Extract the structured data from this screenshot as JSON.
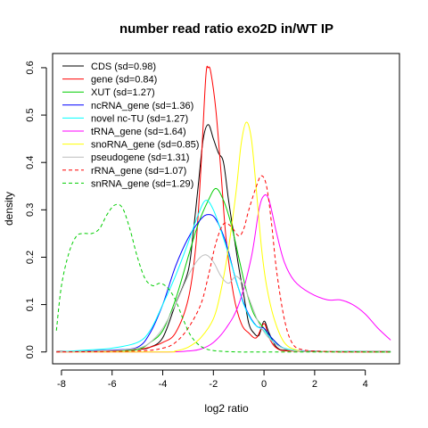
{
  "chart_data": {
    "type": "line",
    "title": "number read ratio exo2D in/WT IP",
    "xlabel": "log2 ratio",
    "ylabel": "density",
    "xlim": [
      -8.35,
      5.35
    ],
    "ylim": [
      -0.025,
      0.63
    ],
    "x_ticks": [
      -8,
      -6,
      -4,
      -2,
      0,
      2,
      4
    ],
    "x_tick_labels": [
      "-8",
      "-6",
      "-4",
      "-2",
      "0",
      "2",
      "4"
    ],
    "y_ticks": [
      0.0,
      0.1,
      0.2,
      0.3,
      0.4,
      0.5,
      0.6
    ],
    "y_tick_labels": [
      "0.0",
      "0.1",
      "0.2",
      "0.3",
      "0.4",
      "0.5",
      "0.6"
    ],
    "grid": false,
    "legend_position": "top-left",
    "series": [
      {
        "name": "CDS (sd=0.98)",
        "color": "#000000",
        "dash": "solid",
        "points": [
          [
            -8.2,
            0.001
          ],
          [
            -6,
            0.003
          ],
          [
            -5,
            0.005
          ],
          [
            -4.5,
            0.01
          ],
          [
            -4,
            0.03
          ],
          [
            -3.5,
            0.1
          ],
          [
            -3,
            0.17
          ],
          [
            -2.8,
            0.25
          ],
          [
            -2.6,
            0.35
          ],
          [
            -2.4,
            0.45
          ],
          [
            -2.2,
            0.48
          ],
          [
            -2,
            0.45
          ],
          [
            -1.8,
            0.42
          ],
          [
            -1.6,
            0.4
          ],
          [
            -1.4,
            0.32
          ],
          [
            -1.2,
            0.25
          ],
          [
            -1,
            0.18
          ],
          [
            -0.8,
            0.12
          ],
          [
            -0.6,
            0.06
          ],
          [
            -0.4,
            0.04
          ],
          [
            -0.2,
            0.035
          ],
          [
            0,
            0.065
          ],
          [
            0.2,
            0.04
          ],
          [
            0.5,
            0.01
          ],
          [
            1,
            0.003
          ],
          [
            3,
            0.001
          ],
          [
            5,
            0.001
          ]
        ]
      },
      {
        "name": "gene (sd=0.84)",
        "color": "#ff0000",
        "dash": "solid",
        "points": [
          [
            -8.2,
            0
          ],
          [
            -6,
            0.002
          ],
          [
            -5,
            0.005
          ],
          [
            -4.5,
            0.01
          ],
          [
            -4,
            0.02
          ],
          [
            -3.5,
            0.04
          ],
          [
            -3,
            0.11
          ],
          [
            -2.7,
            0.22
          ],
          [
            -2.5,
            0.38
          ],
          [
            -2.3,
            0.58
          ],
          [
            -2.2,
            0.6
          ],
          [
            -2.1,
            0.59
          ],
          [
            -1.9,
            0.51
          ],
          [
            -1.7,
            0.38
          ],
          [
            -1.5,
            0.24
          ],
          [
            -1.2,
            0.12
          ],
          [
            -0.9,
            0.06
          ],
          [
            -0.6,
            0.04
          ],
          [
            -0.3,
            0.03
          ],
          [
            0,
            0.06
          ],
          [
            0.2,
            0.03
          ],
          [
            0.5,
            0.008
          ],
          [
            1,
            0.002
          ],
          [
            3,
            0
          ],
          [
            5,
            0
          ]
        ]
      },
      {
        "name": "XUT (sd=1.27)",
        "color": "#00cd00",
        "dash": "solid",
        "points": [
          [
            -8.2,
            0
          ],
          [
            -6,
            0.003
          ],
          [
            -5,
            0.005
          ],
          [
            -4.5,
            0.02
          ],
          [
            -4,
            0.045
          ],
          [
            -3.5,
            0.11
          ],
          [
            -3,
            0.2
          ],
          [
            -2.6,
            0.27
          ],
          [
            -2.2,
            0.32
          ],
          [
            -1.9,
            0.345
          ],
          [
            -1.6,
            0.32
          ],
          [
            -1.3,
            0.27
          ],
          [
            -1,
            0.2
          ],
          [
            -0.7,
            0.13
          ],
          [
            -0.4,
            0.08
          ],
          [
            0,
            0.05
          ],
          [
            0.3,
            0.03
          ],
          [
            0.7,
            0.01
          ],
          [
            1.2,
            0.003
          ],
          [
            3,
            0.001
          ],
          [
            5,
            0
          ]
        ]
      },
      {
        "name": "ncRNA_gene (sd=1.36)",
        "color": "#0000ff",
        "dash": "solid",
        "points": [
          [
            -8.2,
            0
          ],
          [
            -7,
            0.002
          ],
          [
            -6,
            0.004
          ],
          [
            -5,
            0.01
          ],
          [
            -4.5,
            0.04
          ],
          [
            -4,
            0.1
          ],
          [
            -3.5,
            0.18
          ],
          [
            -3,
            0.24
          ],
          [
            -2.5,
            0.28
          ],
          [
            -2.2,
            0.29
          ],
          [
            -1.9,
            0.28
          ],
          [
            -1.5,
            0.23
          ],
          [
            -1.1,
            0.15
          ],
          [
            -0.7,
            0.09
          ],
          [
            -0.3,
            0.055
          ],
          [
            0,
            0.05
          ],
          [
            0.3,
            0.03
          ],
          [
            0.7,
            0.01
          ],
          [
            1.3,
            0.003
          ],
          [
            3,
            0.001
          ],
          [
            5,
            0
          ]
        ]
      },
      {
        "name": "novel nc-TU (sd=1.27)",
        "color": "#00ffff",
        "dash": "solid",
        "points": [
          [
            -8.2,
            0
          ],
          [
            -7,
            0.004
          ],
          [
            -6,
            0.008
          ],
          [
            -5,
            0.02
          ],
          [
            -4.5,
            0.045
          ],
          [
            -4,
            0.1
          ],
          [
            -3.5,
            0.16
          ],
          [
            -3,
            0.23
          ],
          [
            -2.6,
            0.29
          ],
          [
            -2.3,
            0.32
          ],
          [
            -2,
            0.3
          ],
          [
            -1.6,
            0.24
          ],
          [
            -1.2,
            0.17
          ],
          [
            -0.8,
            0.1
          ],
          [
            -0.4,
            0.06
          ],
          [
            0,
            0.045
          ],
          [
            0.4,
            0.02
          ],
          [
            0.8,
            0.008
          ],
          [
            1.5,
            0.002
          ],
          [
            3,
            0.001
          ],
          [
            5,
            0
          ]
        ]
      },
      {
        "name": "tRNA_gene (sd=1.64)",
        "color": "#ff00ff",
        "dash": "solid",
        "points": [
          [
            -8.2,
            0
          ],
          [
            -4,
            0
          ],
          [
            -3,
            0.002
          ],
          [
            -2.5,
            0.006
          ],
          [
            -2,
            0.02
          ],
          [
            -1.5,
            0.05
          ],
          [
            -1,
            0.1
          ],
          [
            -0.5,
            0.2
          ],
          [
            -0.2,
            0.3
          ],
          [
            0,
            0.33
          ],
          [
            0.2,
            0.32
          ],
          [
            0.5,
            0.25
          ],
          [
            0.8,
            0.19
          ],
          [
            1.2,
            0.15
          ],
          [
            1.8,
            0.125
          ],
          [
            2.5,
            0.11
          ],
          [
            3,
            0.11
          ],
          [
            3.5,
            0.1
          ],
          [
            4,
            0.08
          ],
          [
            4.5,
            0.05
          ],
          [
            5,
            0.025
          ]
        ]
      },
      {
        "name": "snoRNA_gene (sd=0.85)",
        "color": "#ffff00",
        "dash": "solid",
        "points": [
          [
            -8.2,
            0
          ],
          [
            -4,
            0
          ],
          [
            -3.5,
            0.002
          ],
          [
            -3,
            0.01
          ],
          [
            -2.5,
            0.03
          ],
          [
            -2,
            0.07
          ],
          [
            -1.7,
            0.13
          ],
          [
            -1.4,
            0.22
          ],
          [
            -1.1,
            0.34
          ],
          [
            -0.9,
            0.44
          ],
          [
            -0.7,
            0.485
          ],
          [
            -0.5,
            0.45
          ],
          [
            -0.3,
            0.34
          ],
          [
            -0.1,
            0.22
          ],
          [
            0.1,
            0.14
          ],
          [
            0.4,
            0.07
          ],
          [
            0.8,
            0.02
          ],
          [
            1.3,
            0.004
          ],
          [
            2,
            0.001
          ],
          [
            5,
            0
          ]
        ]
      },
      {
        "name": "pseudogene (sd=1.31)",
        "color": "#bebebe",
        "dash": "solid",
        "points": [
          [
            -8.2,
            0
          ],
          [
            -6,
            0.003
          ],
          [
            -5,
            0.008
          ],
          [
            -4.5,
            0.02
          ],
          [
            -4,
            0.05
          ],
          [
            -3.5,
            0.1
          ],
          [
            -3,
            0.16
          ],
          [
            -2.6,
            0.195
          ],
          [
            -2.3,
            0.205
          ],
          [
            -2,
            0.19
          ],
          [
            -1.7,
            0.16
          ],
          [
            -1.4,
            0.145
          ],
          [
            -1.1,
            0.16
          ],
          [
            -0.8,
            0.14
          ],
          [
            -0.5,
            0.1
          ],
          [
            -0.2,
            0.06
          ],
          [
            0.1,
            0.035
          ],
          [
            0.5,
            0.015
          ],
          [
            1,
            0.004
          ],
          [
            2,
            0.001
          ],
          [
            5,
            0
          ]
        ]
      },
      {
        "name": "rRNA_gene (sd=1.07)",
        "color": "#ff0000",
        "dash": "dashed",
        "points": [
          [
            -8.2,
            0
          ],
          [
            -5,
            0.002
          ],
          [
            -4,
            0.008
          ],
          [
            -3.5,
            0.02
          ],
          [
            -3,
            0.05
          ],
          [
            -2.5,
            0.1
          ],
          [
            -2.2,
            0.16
          ],
          [
            -1.9,
            0.23
          ],
          [
            -1.6,
            0.27
          ],
          [
            -1.3,
            0.265
          ],
          [
            -1,
            0.245
          ],
          [
            -0.8,
            0.26
          ],
          [
            -0.6,
            0.3
          ],
          [
            -0.3,
            0.35
          ],
          [
            -0.1,
            0.372
          ],
          [
            0.1,
            0.35
          ],
          [
            0.3,
            0.27
          ],
          [
            0.5,
            0.17
          ],
          [
            0.8,
            0.07
          ],
          [
            1.1,
            0.02
          ],
          [
            1.5,
            0.005
          ],
          [
            2.5,
            0.001
          ],
          [
            5,
            0
          ]
        ]
      },
      {
        "name": "snRNA_gene (sd=1.29)",
        "color": "#00cd00",
        "dash": "dashed",
        "points": [
          [
            -8.2,
            0.045
          ],
          [
            -8,
            0.14
          ],
          [
            -7.7,
            0.21
          ],
          [
            -7.4,
            0.245
          ],
          [
            -7.1,
            0.25
          ],
          [
            -6.8,
            0.25
          ],
          [
            -6.5,
            0.26
          ],
          [
            -6.2,
            0.29
          ],
          [
            -5.9,
            0.31
          ],
          [
            -5.6,
            0.305
          ],
          [
            -5.3,
            0.26
          ],
          [
            -5,
            0.2
          ],
          [
            -4.7,
            0.155
          ],
          [
            -4.4,
            0.14
          ],
          [
            -4.1,
            0.145
          ],
          [
            -3.8,
            0.135
          ],
          [
            -3.5,
            0.11
          ],
          [
            -3.2,
            0.07
          ],
          [
            -2.9,
            0.035
          ],
          [
            -2.5,
            0.012
          ],
          [
            -2,
            0.003
          ],
          [
            -1,
            0
          ],
          [
            0,
            0
          ],
          [
            5,
            0
          ]
        ]
      }
    ]
  }
}
